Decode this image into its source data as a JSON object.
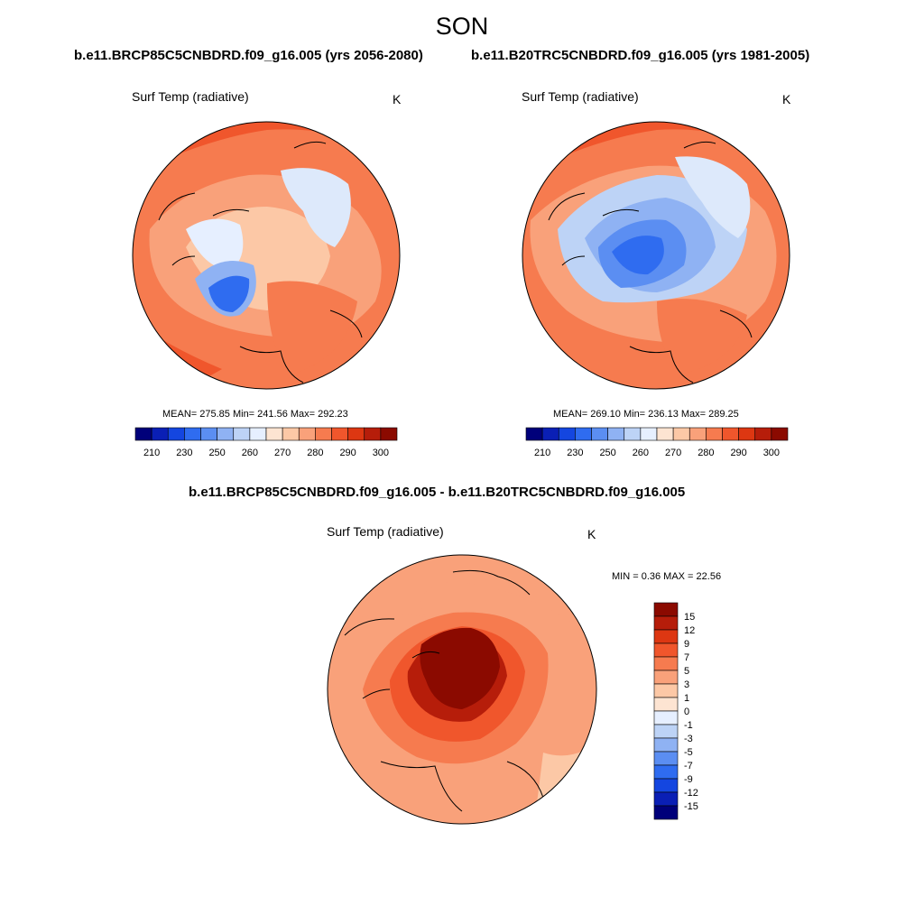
{
  "header": {
    "season": "SON",
    "case_left": "b.e11.BRCP85C5CNBDRD.f09_g16.005 (yrs 2056-2080)",
    "case_right": "b.e11.B20TRC5CNBDRD.f09_g16.005 (yrs 1981-2005)",
    "diff_title": "b.e11.BRCP85C5CNBDRD.f09_g16.005 - b.e11.B20TRC5CNBDRD.f09_g16.005"
  },
  "panels": [
    {
      "id": "future",
      "variable": "Surf Temp (radiative)",
      "units": "K",
      "stats": "MEAN= 275.85  Min= 241.56  Max= 292.23",
      "mean": 275.85,
      "min": 241.56,
      "max": 292.23
    },
    {
      "id": "historical",
      "variable": "Surf Temp (radiative)",
      "units": "K",
      "stats": "MEAN= 269.10  Min= 236.13  Max= 289.25",
      "mean": 269.1,
      "min": 236.13,
      "max": 289.25
    },
    {
      "id": "difference",
      "variable": "Surf Temp (radiative)",
      "units": "K",
      "stats": "MIN =   0.36 MAX =  22.56",
      "min": 0.36,
      "max": 22.56
    }
  ],
  "colorbar_abs": {
    "ticks": [
      "210",
      "230",
      "250",
      "260",
      "270",
      "280",
      "290",
      "300"
    ],
    "colors": [
      "#00007a",
      "#0a1fb5",
      "#1446e0",
      "#2f6cf0",
      "#5b8ef2",
      "#8fb2f3",
      "#bdd3f6",
      "#e6efff",
      "#fde4d2",
      "#fcc8a6",
      "#f9a17a",
      "#f67b4f",
      "#f0562c",
      "#dd3712",
      "#b61d0a",
      "#8b0a00"
    ]
  },
  "colorbar_diff": {
    "ticks": [
      "15",
      "12",
      "9",
      "7",
      "5",
      "3",
      "1",
      "0",
      "-1",
      "-3",
      "-5",
      "-7",
      "-9",
      "-12",
      "-15"
    ],
    "colors": [
      "#8b0a00",
      "#b61d0a",
      "#dd3712",
      "#f0562c",
      "#f67b4f",
      "#f9a17a",
      "#fcc8a6",
      "#fde4d2",
      "#e6efff",
      "#bdd3f6",
      "#8fb2f3",
      "#5b8ef2",
      "#2f6cf0",
      "#1446e0",
      "#0a1fb5",
      "#00007a"
    ]
  }
}
